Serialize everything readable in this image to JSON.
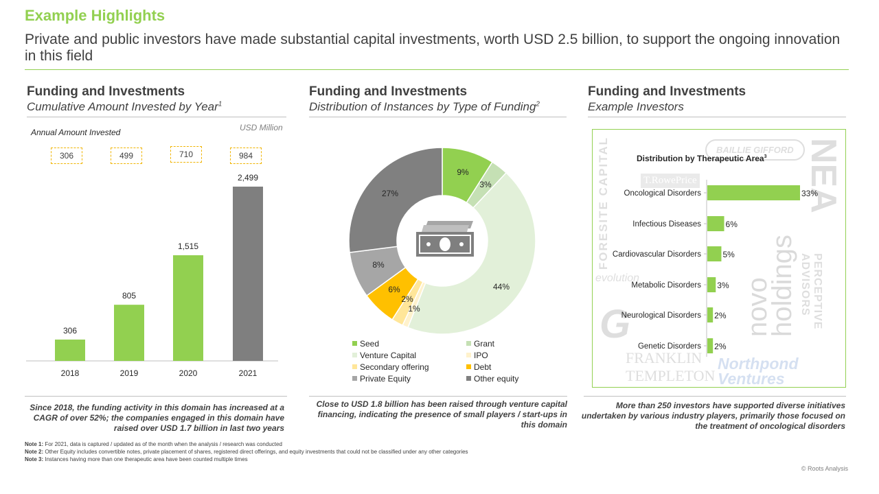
{
  "header": {
    "title": "Example Highlights",
    "subtitle": "Private and public investors have made substantial capital investments, worth USD 2.5 billion, to support the ongoing innovation in this field"
  },
  "panels": [
    {
      "title": "Funding and Investments",
      "subtitle": "Cumulative Amount Invested by Year",
      "footnote": "1"
    },
    {
      "title": "Funding and Investments",
      "subtitle": "Distribution of Instances by Type of Funding",
      "footnote": "2"
    },
    {
      "title": "Funding and Investments",
      "subtitle": "Example Investors",
      "footnote": ""
    }
  ],
  "bar_panel": {
    "annual_label": "Annual Amount Invested",
    "unit_label": "USD Million",
    "annual_values": [
      "306",
      "499",
      "710",
      "984"
    ]
  },
  "therapeutic": {
    "title": "Distribution by  Therapeutic Area",
    "footnote": "3"
  },
  "logos": [
    "FORESITE CAPITAL",
    "T.RowePrice",
    "BAILLIE GIFFORD",
    "NEA",
    "novo holdings",
    "PERCEPTIVE ADVISORS",
    "evolution",
    "G",
    "FRANKLIN TEMPLETON",
    "Northpond Ventures"
  ],
  "summaries": [
    "Since 2018, the funding activity in this domain has increased at a CAGR of over 52%; the companies engaged in this domain have raised over USD 1.7 billion in last two years",
    "Close to USD 1.8 billion has been raised through venture capital financing, indicating the presence of small players / start-ups in this domain",
    "More than 250 investors have supported diverse initiatives undertaken by various industry players, primarily those focused on the treatment of oncological disorders"
  ],
  "notes": [
    {
      "label": "Note 1:",
      "text": "For 2021, data is captured / updated as of the month when the analysis / research was conducted"
    },
    {
      "label": "Note 2:",
      "text": "Other Equity includes convertible notes, private placement of shares, registered direct offerings, and equity investments that could not be classified under any other categories"
    },
    {
      "label": "Note 3:",
      "text": "Instances having more than one therapeutic area have been counted multiple times"
    }
  ],
  "copyright": "© Roots Analysis",
  "chart_data": [
    {
      "type": "bar",
      "title": "Cumulative Amount Invested by Year",
      "categories": [
        "2018",
        "2019",
        "2020",
        "2021"
      ],
      "values": [
        306,
        805,
        1515,
        2499
      ],
      "value_labels": [
        "306",
        "805",
        "1,515",
        "2,499"
      ],
      "colors": [
        "#92d050",
        "#92d050",
        "#92d050",
        "#7f7f7f"
      ],
      "ylim": [
        0,
        2600
      ],
      "grid": false
    },
    {
      "type": "pie",
      "donut": true,
      "title": "Distribution of Instances by Type of Funding",
      "center_icon": "money-icon",
      "slices": [
        {
          "name": "Seed",
          "value": 9,
          "label": "9%",
          "color": "#92d050"
        },
        {
          "name": "Grant",
          "value": 3,
          "label": "3%",
          "color": "#c5e0b4"
        },
        {
          "name": "Venture Capital",
          "value": 44,
          "label": "44%",
          "color": "#e2f0d9"
        },
        {
          "name": "IPO",
          "value": 1,
          "label": "1%",
          "color": "#fff2cc"
        },
        {
          "name": "Secondary offering",
          "value": 2,
          "label": "2%",
          "color": "#ffe699"
        },
        {
          "name": "Debt",
          "value": 6,
          "label": "6%",
          "color": "#ffc000"
        },
        {
          "name": "Private Equity",
          "value": 8,
          "label": "8%",
          "color": "#a6a6a6"
        },
        {
          "name": "Other equity",
          "value": 27,
          "label": "27%",
          "color": "#808080"
        }
      ],
      "legend": "bottom"
    },
    {
      "type": "bar",
      "orientation": "horizontal",
      "title": "Distribution by  Therapeutic Area",
      "categories": [
        "Oncological Disorders",
        "Infectious Diseases",
        "Cardiovascular Disorders",
        "Metabolic Disorders",
        "Neurological Disorders",
        "Genetic Disorders"
      ],
      "values": [
        33,
        6,
        5,
        3,
        2,
        2
      ],
      "value_labels": [
        "33%",
        "6%",
        "5%",
        "3%",
        "2%",
        "2%"
      ],
      "color": "#92d050",
      "xlim": [
        0,
        33
      ]
    }
  ]
}
